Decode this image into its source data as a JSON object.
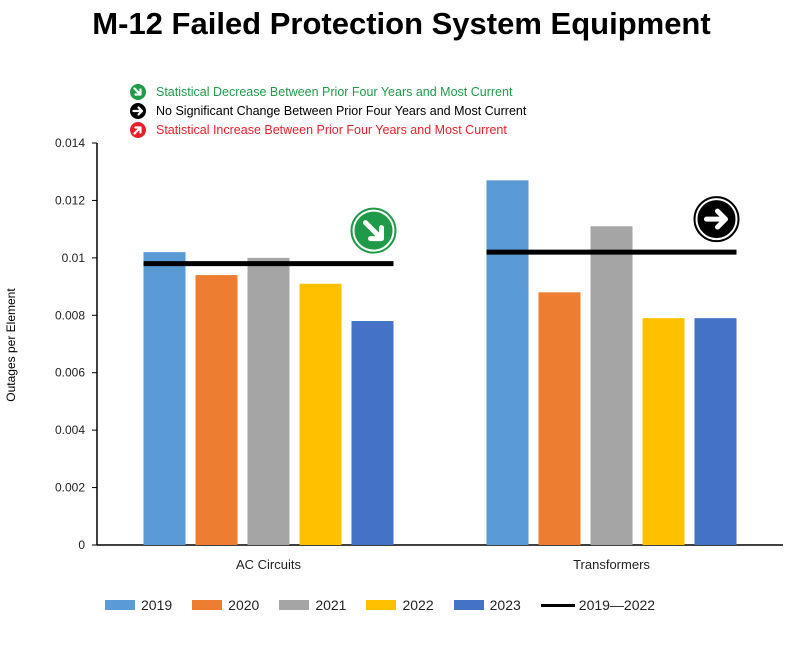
{
  "title": "M-12 Failed Protection System Equipment",
  "trend_legend": [
    {
      "label": "Statistical Decrease Between Prior Four Years and Most Current",
      "color": "#1f9a48",
      "icon": "arrow-down-right-icon",
      "text_color": "#1f9a48"
    },
    {
      "label": "No Significant Change Between Prior Four Years and Most Current",
      "color": "#000000",
      "icon": "arrow-right-icon",
      "text_color": "#000000"
    },
    {
      "label": "Statistical Increase Between Prior Four Years and Most Current",
      "color": "#e8202a",
      "icon": "arrow-up-right-icon",
      "text_color": "#e8202a"
    }
  ],
  "chart_data": {
    "type": "bar",
    "title": "M-12 Failed Protection System Equipment",
    "xlabel": "",
    "ylabel": "Outages per Element",
    "ylim": [
      0,
      0.014
    ],
    "yticks": [
      "0",
      "0.002",
      "0.004",
      "0.006",
      "0.008",
      "0.01",
      "0.012",
      "0.014"
    ],
    "categories": [
      "AC Circuits",
      "Transformers"
    ],
    "series": [
      {
        "name": "2019",
        "color": "#5b9bd5",
        "values": [
          0.0102,
          0.0127
        ]
      },
      {
        "name": "2020",
        "color": "#ed7d31",
        "values": [
          0.0094,
          0.0088
        ]
      },
      {
        "name": "2021",
        "color": "#a5a5a5",
        "values": [
          0.01,
          0.0111
        ]
      },
      {
        "name": "2022",
        "color": "#ffc000",
        "values": [
          0.0091,
          0.0079
        ]
      },
      {
        "name": "2023",
        "color": "#4472c4",
        "values": [
          0.0078,
          0.0079
        ]
      }
    ],
    "reference_line": {
      "name": "2019—2022",
      "color": "#000000",
      "values": [
        0.0098,
        0.0102
      ]
    },
    "trend_markers": [
      {
        "category": "AC Circuits",
        "icon": "arrow-down-right-icon",
        "color": "#1f9a48"
      },
      {
        "category": "Transformers",
        "icon": "arrow-right-icon",
        "color": "#000000"
      }
    ],
    "legend_position": "bottom",
    "grid": false
  }
}
